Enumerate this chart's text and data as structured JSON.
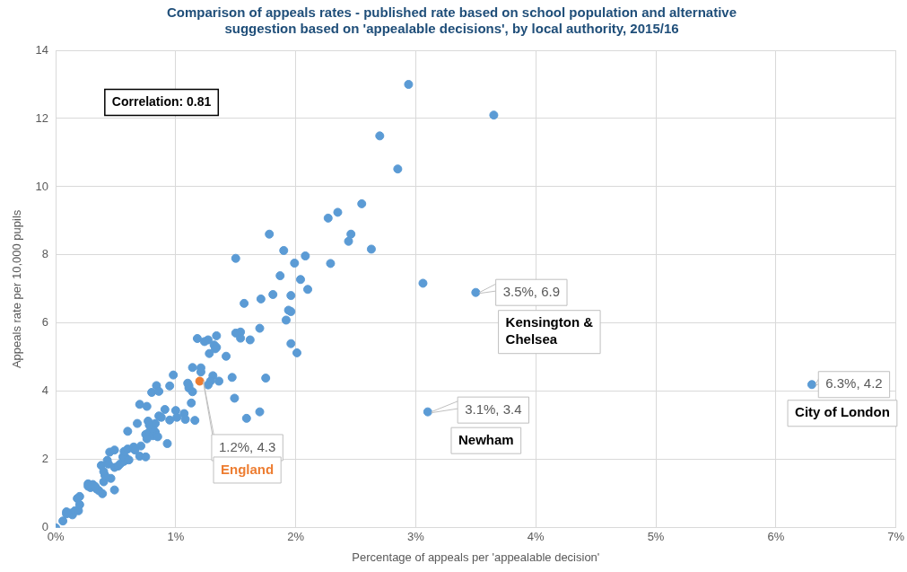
{
  "chart_data": {
    "type": "scatter",
    "title": "Comparison of appeals rates - published rate based on school population and alternative suggestion based on 'appealable decisions', by local authority, 2015/16",
    "xlabel": "Percentage of appeals per 'appealable decision'",
    "ylabel": "Appeals rate per 10,000 pupils",
    "xlim": [
      0,
      7
    ],
    "xticks": [
      {
        "value": 0,
        "label": "0%"
      },
      {
        "value": 1,
        "label": "1%"
      },
      {
        "value": 2,
        "label": "2%"
      },
      {
        "value": 3,
        "label": "3%"
      },
      {
        "value": 4,
        "label": "4%"
      },
      {
        "value": 5,
        "label": "5%"
      },
      {
        "value": 6,
        "label": "6%"
      },
      {
        "value": 7,
        "label": "7%"
      }
    ],
    "ylim": [
      0,
      14
    ],
    "yticks": [
      0,
      2,
      4,
      6,
      8,
      10,
      12,
      14
    ],
    "grid": true,
    "marker": "circle",
    "annotations": [
      "Correlation: 0.81",
      {
        "text": "1.2%, 4.3",
        "x": 1.2,
        "y": 4.3
      },
      {
        "text": "3.5%, 6.9",
        "x": 3.5,
        "y": 6.9
      },
      "Kensington & Chelsea",
      {
        "text": "3.1%, 3.4",
        "x": 3.1,
        "y": 3.4
      },
      "Newham",
      {
        "text": "6.3%, 4.2",
        "x": 6.3,
        "y": 4.2
      },
      "City of London"
    ],
    "series": [
      {
        "color": "#5b9bd5",
        "x": [
          2.94,
          2.7,
          2.85,
          2.55,
          2.35,
          2.27,
          1.78,
          2.46,
          2.44,
          1.9,
          2.63,
          1.5,
          2.08,
          1.99,
          2.29,
          1.87,
          2.04,
          2.1,
          3.06,
          1.81,
          1.96,
          1.71,
          1.57,
          1.94,
          1.96,
          1.92,
          1.7,
          1.5,
          1.54,
          1.54,
          1.62,
          1.18,
          1.34,
          1.27,
          1.24,
          1.32,
          1.34,
          1.33,
          1.28,
          1.42,
          1.96,
          2.01,
          1.14,
          1.21,
          1.21,
          0.98,
          0.95,
          1.31,
          1.29,
          1.36,
          1.47,
          1.75,
          1.1,
          1.11,
          1.14,
          1.11,
          1.27,
          1.13,
          1.49,
          1.7,
          1.59,
          0.91,
          1.0,
          1.01,
          0.95,
          1.07,
          1.08,
          1.16,
          0,
          0.06,
          0.09,
          0.12,
          0.14,
          0.09,
          0.16,
          0.19,
          0.2,
          0.2,
          0.18,
          0.27,
          0.29,
          0.31,
          0.34,
          0.36,
          0.39,
          0.33,
          0.27,
          0.4,
          0.49,
          0.46,
          0.41,
          0.4,
          0.38,
          0.43,
          0.44,
          0.49,
          0.52,
          0.54,
          0.57,
          0.58,
          0.56,
          0.61,
          0.57,
          0.6,
          0.45,
          0.49,
          0.65,
          0.66,
          0.71,
          0.7,
          0.75,
          0.93,
          0.75,
          0.78,
          0.81,
          0.83,
          0.85,
          0.76,
          0.81,
          0.83,
          0.77,
          0.78,
          0.6,
          0.68,
          0.7,
          0.76,
          0.8,
          0.84,
          0.86,
          0.86,
          0.88,
          3.65,
          3.5,
          3.1,
          6.3
        ],
        "values": [
          13.0,
          11.49,
          10.52,
          9.5,
          9.25,
          9.08,
          8.61,
          8.61,
          8.4,
          8.13,
          8.17,
          7.9,
          7.97,
          7.76,
          7.75,
          7.39,
          7.28,
          6.99,
          7.17,
          6.84,
          6.81,
          6.71,
          6.58,
          6.38,
          6.34,
          6.09,
          5.85,
          5.71,
          5.74,
          5.56,
          5.51,
          5.55,
          5.63,
          5.51,
          5.46,
          5.36,
          5.29,
          5.25,
          5.11,
          5.03,
          5.4,
          5.13,
          4.7,
          4.69,
          4.57,
          4.48,
          4.16,
          4.46,
          4.3,
          4.3,
          4.41,
          4.39,
          4.24,
          4.1,
          3.99,
          4.17,
          4.19,
          3.66,
          3.8,
          3.4,
          3.21,
          3.47,
          3.44,
          3.24,
          3.16,
          3.35,
          3.18,
          3.15,
          0,
          0.2,
          0.47,
          0.43,
          0.38,
          0.41,
          0.5,
          0.5,
          0.68,
          0.92,
          0.86,
          1.29,
          1.18,
          1.27,
          1.14,
          1.09,
          1.0,
          1.21,
          1.22,
          1.35,
          1.11,
          1.45,
          1.54,
          1.65,
          1.83,
          1.98,
          1.87,
          1.77,
          1.81,
          1.88,
          1.95,
          2.07,
          2.08,
          1.99,
          2.24,
          2.31,
          2.22,
          2.28,
          2.37,
          2.28,
          2.4,
          2.1,
          2.08,
          2.47,
          2.74,
          2.81,
          2.7,
          2.81,
          2.67,
          2.61,
          2.9,
          3.06,
          3.13,
          3.01,
          2.83,
          3.06,
          3.62,
          3.56,
          3.97,
          4.17,
          4.0,
          3.28,
          3.24,
          12.1,
          6.9,
          3.4,
          4.2
        ]
      },
      {
        "name": "England",
        "color": "#ed7d31",
        "x": [
          1.2
        ],
        "values": [
          4.3
        ]
      }
    ]
  }
}
